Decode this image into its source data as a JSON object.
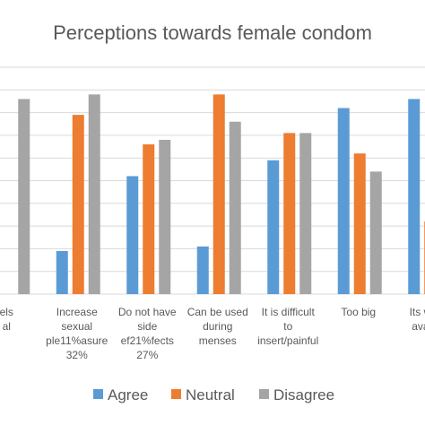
{
  "chart_data": {
    "type": "bar",
    "title": "Perceptions towards female condom",
    "xlabel": "",
    "ylabel": "",
    "ylim": [
      0,
      100
    ],
    "grid": true,
    "legend_position": "bottom",
    "categories": [
      [
        "els",
        "al"
      ],
      [
        "Increase",
        "sexual",
        "ple11%asure",
        "32%"
      ],
      [
        "Do not have",
        "side",
        "ef21%fects",
        "27%"
      ],
      [
        "Can be used",
        "during",
        "menses"
      ],
      [
        "It is difficult",
        "to",
        "insert/painful"
      ],
      [
        "Too big"
      ],
      [
        "Its widel",
        "availab"
      ]
    ],
    "series": [
      {
        "name": "Agree",
        "color": "#5b9bd5",
        "values": [
          null,
          19,
          52,
          21,
          59,
          82,
          86
        ]
      },
      {
        "name": "Neutral",
        "color": "#ed7d31",
        "values": [
          null,
          79,
          66,
          88,
          71,
          62,
          32
        ]
      },
      {
        "name": "Disagree",
        "color": "#a5a5a5",
        "values": [
          86,
          88,
          68,
          76,
          71,
          54,
          74
        ]
      }
    ]
  }
}
